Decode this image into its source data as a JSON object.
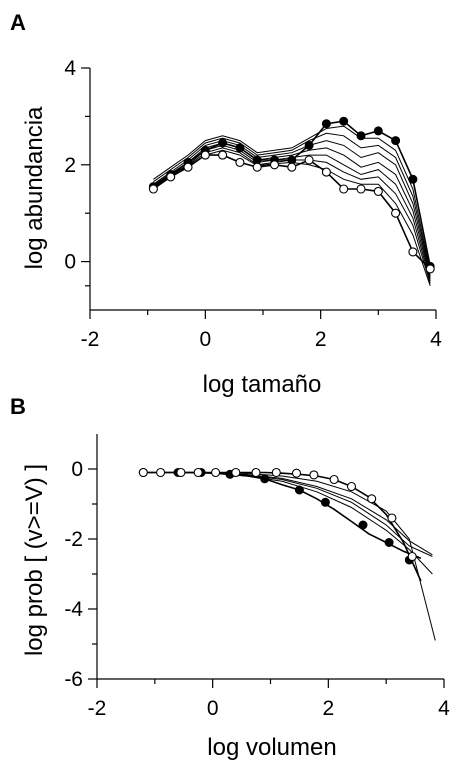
{
  "chart_data": [
    {
      "panel": "A",
      "type": "line",
      "xlabel": "log tamaño",
      "ylabel": "log abundancia",
      "xlim": [
        -2,
        4
      ],
      "ylim": [
        -1,
        4
      ],
      "xticks": [
        -2,
        0,
        2,
        4
      ],
      "yticks": [
        0,
        2,
        4
      ],
      "grid": false,
      "series": [
        {
          "marker": "filled",
          "x": [
            -0.9,
            -0.6,
            -0.3,
            0.0,
            0.3,
            0.6,
            0.9,
            1.2,
            1.5,
            1.8,
            2.1,
            2.4,
            2.7,
            3.0,
            3.3,
            3.6,
            3.9
          ],
          "y": [
            1.55,
            1.8,
            2.05,
            2.3,
            2.45,
            2.35,
            2.1,
            2.1,
            2.1,
            2.4,
            2.85,
            2.9,
            2.6,
            2.7,
            2.5,
            1.7,
            -0.1
          ]
        },
        {
          "marker": "none",
          "x": [
            -0.9,
            -0.6,
            -0.3,
            0.0,
            0.3,
            0.6,
            0.9,
            1.2,
            1.5,
            1.8,
            2.1,
            2.4,
            2.7,
            3.0,
            3.3,
            3.6,
            3.9
          ],
          "y": [
            1.7,
            1.95,
            2.2,
            2.5,
            2.6,
            2.5,
            2.25,
            2.3,
            2.35,
            2.55,
            2.75,
            2.8,
            2.55,
            2.55,
            2.3,
            1.5,
            -0.2
          ]
        },
        {
          "marker": "none",
          "x": [
            -0.9,
            -0.6,
            -0.3,
            0.0,
            0.3,
            0.6,
            0.9,
            1.2,
            1.5,
            1.8,
            2.1,
            2.4,
            2.7,
            3.0,
            3.3,
            3.6,
            3.9
          ],
          "y": [
            1.65,
            1.9,
            2.15,
            2.45,
            2.55,
            2.45,
            2.2,
            2.25,
            2.3,
            2.5,
            2.65,
            2.6,
            2.35,
            2.4,
            2.15,
            1.35,
            -0.25
          ]
        },
        {
          "marker": "none",
          "x": [
            -0.9,
            -0.6,
            -0.3,
            0.0,
            0.3,
            0.6,
            0.9,
            1.2,
            1.5,
            1.8,
            2.1,
            2.4,
            2.7,
            3.0,
            3.3,
            3.6,
            3.9
          ],
          "y": [
            1.6,
            1.85,
            2.1,
            2.4,
            2.5,
            2.4,
            2.15,
            2.2,
            2.25,
            2.4,
            2.5,
            2.4,
            2.15,
            2.25,
            2.0,
            1.2,
            -0.3
          ]
        },
        {
          "marker": "none",
          "x": [
            -0.9,
            -0.6,
            -0.3,
            0.0,
            0.3,
            0.6,
            0.9,
            1.2,
            1.5,
            1.8,
            2.1,
            2.4,
            2.7,
            3.0,
            3.3,
            3.6,
            3.9
          ],
          "y": [
            1.58,
            1.82,
            2.05,
            2.35,
            2.45,
            2.35,
            2.1,
            2.15,
            2.2,
            2.3,
            2.35,
            2.2,
            1.95,
            2.05,
            1.8,
            1.05,
            -0.35
          ]
        },
        {
          "marker": "none",
          "x": [
            -0.9,
            -0.6,
            -0.3,
            0.0,
            0.3,
            0.6,
            0.9,
            1.2,
            1.5,
            1.8,
            2.1,
            2.4,
            2.7,
            3.0,
            3.3,
            3.6,
            3.9
          ],
          "y": [
            1.56,
            1.8,
            2.0,
            2.3,
            2.4,
            2.3,
            2.05,
            2.1,
            2.15,
            2.2,
            2.2,
            2.0,
            1.8,
            1.9,
            1.6,
            0.9,
            -0.4
          ]
        },
        {
          "marker": "none",
          "x": [
            -0.9,
            -0.6,
            -0.3,
            0.0,
            0.3,
            0.6,
            0.9,
            1.2,
            1.5,
            1.8,
            2.1,
            2.4,
            2.7,
            3.0,
            3.3,
            3.6,
            3.9
          ],
          "y": [
            1.54,
            1.78,
            1.98,
            2.25,
            2.35,
            2.25,
            2.0,
            2.05,
            2.1,
            2.1,
            2.05,
            1.85,
            1.7,
            1.75,
            1.4,
            0.75,
            -0.45
          ]
        },
        {
          "marker": "none",
          "x": [
            -0.9,
            -0.6,
            -0.3,
            0.0,
            0.3,
            0.6,
            0.9,
            1.2,
            1.5,
            1.8,
            2.1,
            2.4,
            2.7,
            3.0,
            3.3,
            3.6,
            3.9
          ],
          "y": [
            1.52,
            1.76,
            1.95,
            2.2,
            2.3,
            2.2,
            1.98,
            2.02,
            2.05,
            2.0,
            1.9,
            1.7,
            1.6,
            1.6,
            1.2,
            0.55,
            -0.5
          ]
        },
        {
          "marker": "open",
          "x": [
            -0.9,
            -0.6,
            -0.3,
            0.0,
            0.3,
            0.6,
            0.9,
            1.2,
            1.5,
            1.8,
            2.1,
            2.4,
            2.7,
            3.0,
            3.3,
            3.6,
            3.9
          ],
          "y": [
            1.5,
            1.75,
            1.95,
            2.2,
            2.2,
            2.05,
            1.95,
            2.0,
            1.95,
            2.1,
            1.85,
            1.5,
            1.5,
            1.45,
            1.0,
            0.2,
            -0.15
          ]
        }
      ]
    },
    {
      "panel": "B",
      "type": "line",
      "xlabel": "log volumen",
      "ylabel": "log prob [ (v>=V) ]",
      "xlim": [
        -2,
        4
      ],
      "ylim": [
        -6,
        1
      ],
      "xticks": [
        -2,
        0,
        2,
        4
      ],
      "yticks": [
        -6,
        -4,
        -2,
        0
      ],
      "grid": false,
      "series": [
        {
          "marker": "filled",
          "x": [
            -1.2,
            -0.9,
            -0.6,
            -0.3,
            0.0,
            0.3,
            0.6,
            0.9,
            1.2,
            1.5,
            1.8,
            2.1,
            2.4,
            2.7,
            3.0,
            3.3,
            3.6
          ],
          "y": [
            -0.1,
            -0.1,
            -0.1,
            -0.1,
            -0.12,
            -0.15,
            -0.2,
            -0.28,
            -0.45,
            -0.6,
            -0.85,
            -1.15,
            -1.5,
            -1.85,
            -2.1,
            -2.35,
            -2.55
          ],
          "markers_x": [
            -1.2,
            -0.6,
            -0.2,
            0.3,
            0.9,
            1.5,
            1.95,
            2.6,
            3.05,
            3.4
          ],
          "markers_y": [
            -0.1,
            -0.1,
            -0.1,
            -0.15,
            -0.28,
            -0.6,
            -0.95,
            -1.6,
            -2.1,
            -2.6
          ]
        },
        {
          "marker": "none",
          "x": [
            -1.2,
            -0.6,
            0.0,
            0.6,
            1.2,
            1.8,
            2.4,
            3.0,
            3.4,
            3.8
          ],
          "y": [
            -0.1,
            -0.1,
            -0.12,
            -0.2,
            -0.35,
            -0.65,
            -1.1,
            -1.75,
            -2.3,
            -3.0
          ]
        },
        {
          "marker": "none",
          "x": [
            -1.2,
            -0.6,
            0.0,
            0.6,
            1.2,
            1.8,
            2.4,
            3.0,
            3.4,
            3.8
          ],
          "y": [
            -0.1,
            -0.1,
            -0.11,
            -0.18,
            -0.3,
            -0.55,
            -0.95,
            -1.6,
            -2.2,
            -2.5
          ]
        },
        {
          "marker": "none",
          "x": [
            -1.2,
            -0.6,
            0.0,
            0.6,
            1.2,
            1.8,
            2.4,
            3.0,
            3.4,
            3.8
          ],
          "y": [
            -0.1,
            -0.1,
            -0.11,
            -0.16,
            -0.27,
            -0.5,
            -0.85,
            -1.45,
            -2.05,
            -2.45
          ]
        },
        {
          "marker": "none",
          "x": [
            -1.2,
            -0.6,
            0.0,
            0.6,
            1.2,
            1.8,
            2.4,
            3.0,
            3.4,
            3.85
          ],
          "y": [
            -0.1,
            -0.1,
            -0.1,
            -0.13,
            -0.2,
            -0.35,
            -0.65,
            -1.2,
            -2.0,
            -4.9
          ]
        },
        {
          "marker": "open",
          "x": [
            -1.2,
            -0.9,
            -0.6,
            -0.3,
            0.0,
            0.3,
            0.6,
            0.9,
            1.2,
            1.5,
            1.8,
            2.1,
            2.4,
            2.7,
            3.0,
            3.3,
            3.6
          ],
          "y": [
            -0.1,
            -0.1,
            -0.1,
            -0.1,
            -0.1,
            -0.1,
            -0.1,
            -0.1,
            -0.12,
            -0.15,
            -0.2,
            -0.3,
            -0.5,
            -0.8,
            -1.3,
            -2.1,
            -3.2
          ],
          "markers_x": [
            -1.2,
            -0.9,
            -0.55,
            -0.25,
            0.05,
            0.4,
            0.75,
            1.1,
            1.45,
            1.75,
            2.1,
            2.4,
            2.75,
            3.1,
            3.45
          ],
          "markers_y": [
            -0.1,
            -0.1,
            -0.1,
            -0.1,
            -0.1,
            -0.1,
            -0.1,
            -0.1,
            -0.12,
            -0.17,
            -0.3,
            -0.5,
            -0.85,
            -1.4,
            -2.5
          ]
        }
      ]
    }
  ]
}
